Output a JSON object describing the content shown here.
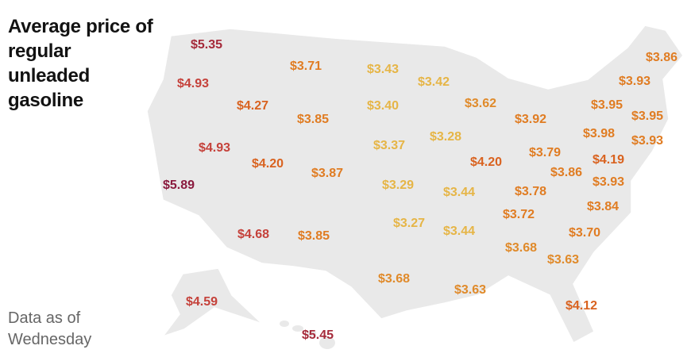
{
  "title": "Average price of regular unleaded gasoline",
  "note": "Data as of Wednesday",
  "labels": [
    {
      "text": "$5.35",
      "color": "#a52a3a"
    },
    {
      "text": "$4.93",
      "color": "#c5413a"
    },
    {
      "text": "$3.71",
      "color": "#e07c22"
    },
    {
      "text": "$3.43",
      "color": "#e6b546"
    },
    {
      "text": "$3.42",
      "color": "#e6b546"
    },
    {
      "text": "$4.27",
      "color": "#d9621f"
    },
    {
      "text": "$3.85",
      "color": "#e07c22"
    },
    {
      "text": "$3.40",
      "color": "#e6b546"
    },
    {
      "text": "$3.62",
      "color": "#e08a2a"
    },
    {
      "text": "$3.92",
      "color": "#e07c22"
    },
    {
      "text": "$4.93",
      "color": "#c5413a"
    },
    {
      "text": "$3.37",
      "color": "#e6b546"
    },
    {
      "text": "$3.28",
      "color": "#e6b546"
    },
    {
      "text": "$4.20",
      "color": "#d9621f"
    },
    {
      "text": "$3.87",
      "color": "#e07c22"
    },
    {
      "text": "$5.89",
      "color": "#8a1a3e"
    },
    {
      "text": "$3.29",
      "color": "#e6b546"
    },
    {
      "text": "$3.44",
      "color": "#e6b546"
    },
    {
      "text": "$4.20",
      "color": "#d9621f"
    },
    {
      "text": "$3.79",
      "color": "#e07c22"
    },
    {
      "text": "$3.86",
      "color": "#e07c22"
    },
    {
      "text": "$3.78",
      "color": "#e07c22"
    },
    {
      "text": "$4.68",
      "color": "#c5413a"
    },
    {
      "text": "$3.85",
      "color": "#e07c22"
    },
    {
      "text": "$3.27",
      "color": "#e6b546"
    },
    {
      "text": "$3.44",
      "color": "#e6b546"
    },
    {
      "text": "$3.72",
      "color": "#e07c22"
    },
    {
      "text": "$3.68",
      "color": "#e08a2a"
    },
    {
      "text": "$3.63",
      "color": "#e08a2a"
    },
    {
      "text": "$3.70",
      "color": "#e07c22"
    },
    {
      "text": "$3.84",
      "color": "#e07c22"
    },
    {
      "text": "$3.93",
      "color": "#e07c22"
    },
    {
      "text": "$4.19",
      "color": "#d9621f"
    },
    {
      "text": "$3.98",
      "color": "#e07c22"
    },
    {
      "text": "$3.93",
      "color": "#e07c22"
    },
    {
      "text": "$3.95",
      "color": "#e07c22"
    },
    {
      "text": "$3.95",
      "color": "#e07c22"
    },
    {
      "text": "$3.93",
      "color": "#e07c22"
    },
    {
      "text": "$3.86",
      "color": "#e07c22"
    },
    {
      "text": "$3.68",
      "color": "#e08a2a"
    },
    {
      "text": "$3.63",
      "color": "#e08a2a"
    },
    {
      "text": "$4.12",
      "color": "#d9621f"
    },
    {
      "text": "$4.59",
      "color": "#c5413a"
    },
    {
      "text": "$5.45",
      "color": "#a52a3a"
    }
  ]
}
